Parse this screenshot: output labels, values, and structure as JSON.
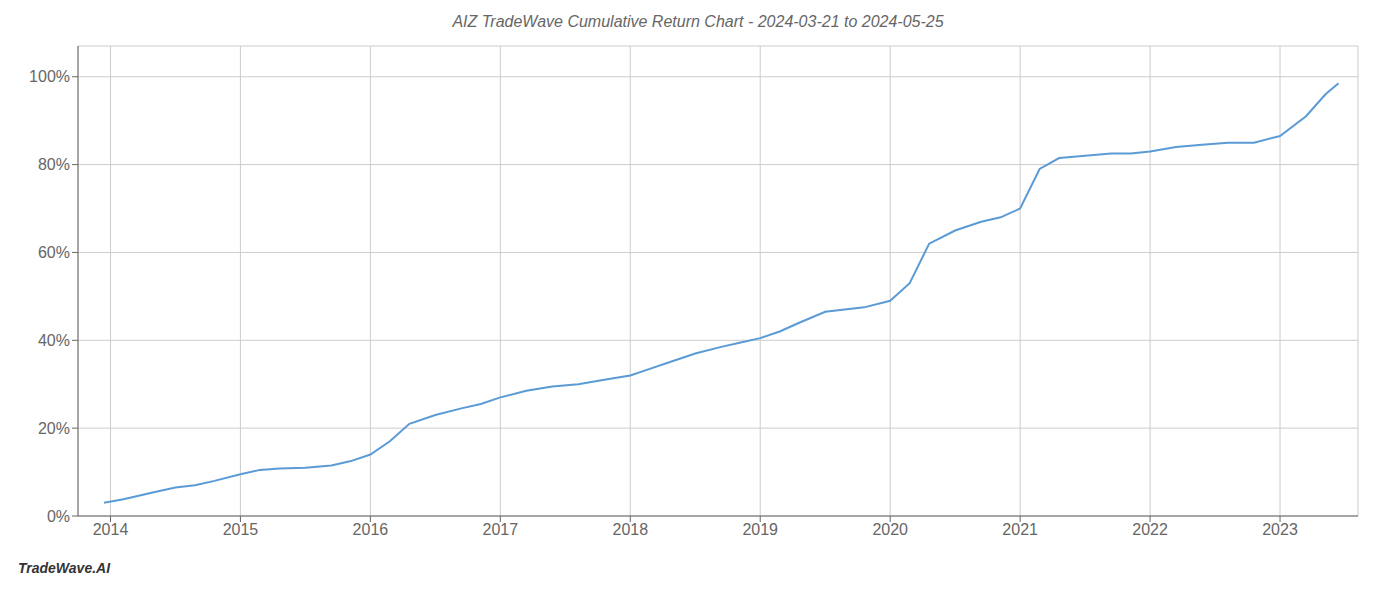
{
  "chart_data": {
    "type": "line",
    "title": "AIZ TradeWave Cumulative Return Chart - 2024-03-21 to 2024-05-25",
    "annotations": [
      "TradeWave.AI"
    ],
    "color": "#5b9bd5",
    "grid": true,
    "x": [
      2013.95,
      2014.1,
      2014.2,
      2014.35,
      2014.5,
      2014.65,
      2014.8,
      2015.0,
      2015.15,
      2015.3,
      2015.5,
      2015.7,
      2015.85,
      2016.0,
      2016.15,
      2016.3,
      2016.5,
      2016.7,
      2016.85,
      2017.0,
      2017.2,
      2017.4,
      2017.6,
      2017.8,
      2018.0,
      2018.15,
      2018.3,
      2018.5,
      2018.7,
      2018.85,
      2019.0,
      2019.15,
      2019.3,
      2019.5,
      2019.65,
      2019.8,
      2020.0,
      2020.15,
      2020.3,
      2020.5,
      2020.7,
      2020.85,
      2021.0,
      2021.15,
      2021.3,
      2021.5,
      2021.7,
      2021.85,
      2022.0,
      2022.2,
      2022.4,
      2022.6,
      2022.8,
      2023.0,
      2023.2,
      2023.35,
      2023.45
    ],
    "values": [
      3.0,
      3.8,
      4.5,
      5.5,
      6.5,
      7.0,
      8.0,
      9.5,
      10.5,
      10.8,
      11.0,
      11.5,
      12.5,
      14.0,
      17.0,
      21.0,
      23.0,
      24.5,
      25.5,
      27.0,
      28.5,
      29.5,
      30.0,
      31.0,
      32.0,
      33.5,
      35.0,
      37.0,
      38.5,
      39.5,
      40.5,
      42.0,
      44.0,
      46.5,
      47.0,
      47.5,
      49.0,
      53.0,
      62.0,
      65.0,
      67.0,
      68.0,
      70.0,
      79.0,
      81.5,
      82.0,
      82.5,
      82.5,
      83.0,
      84.0,
      84.5,
      85.0,
      85.0,
      86.5,
      91.0,
      96.0,
      98.5
    ],
    "xlim": [
      2013.75,
      2023.6
    ],
    "xticks": [
      2014,
      2015,
      2016,
      2017,
      2018,
      2019,
      2020,
      2021,
      2022,
      2023
    ],
    "ylim": [
      0,
      107
    ],
    "yticks": [
      {
        "value": 0,
        "label": "0%"
      },
      {
        "value": 20,
        "label": "20%"
      },
      {
        "value": 40,
        "label": "40%"
      },
      {
        "value": 60,
        "label": "60%"
      },
      {
        "value": 80,
        "label": "80%"
      },
      {
        "value": 100,
        "label": "100%"
      }
    ]
  }
}
